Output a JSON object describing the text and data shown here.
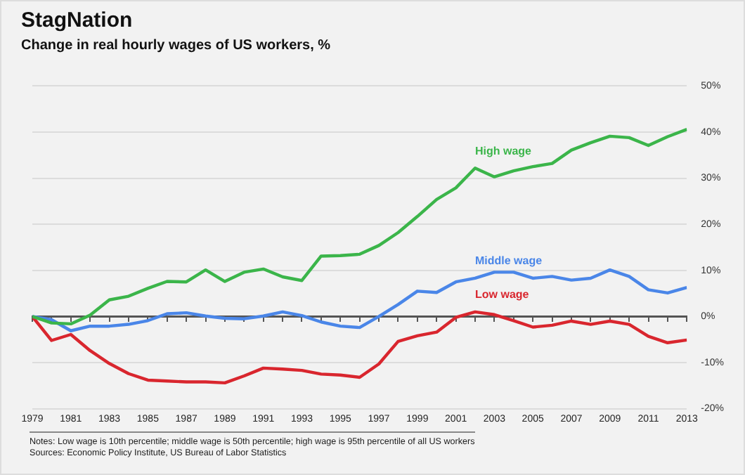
{
  "chart_data": {
    "type": "line",
    "title": "StagNation",
    "subtitle": "Change in real hourly wages of US workers, %",
    "annotations": [
      "Notes: Low wage is 10th percentile; middle wage is 50th percentile; high wage is 95th percentile of all US workers",
      "Sources: Economic Policy Institute, US Bureau of Labor Statistics"
    ],
    "x": [
      1979,
      1980,
      1981,
      1982,
      1983,
      1984,
      1985,
      1986,
      1987,
      1988,
      1989,
      1990,
      1991,
      1992,
      1993,
      1994,
      1995,
      1996,
      1997,
      1998,
      1999,
      2000,
      2001,
      2002,
      2003,
      2004,
      2005,
      2006,
      2007,
      2008,
      2009,
      2010,
      2011,
      2012,
      2013
    ],
    "series": [
      {
        "name": "High wage",
        "color": "#3bb54a",
        "values": [
          0,
          -1.4,
          -1.6,
          0.3,
          3.6,
          4.4,
          6.1,
          7.6,
          7.5,
          10.1,
          7.6,
          9.6,
          10.3,
          8.6,
          7.8,
          13.1,
          13.2,
          13.5,
          15.4,
          18.2,
          21.7,
          25.4,
          27.9,
          32.2,
          30.3,
          31.6,
          32.5,
          33.2,
          36.1,
          37.7,
          39.1,
          38.8,
          37.1,
          39.0,
          40.6
        ]
      },
      {
        "name": "Middle wage",
        "color": "#4a86e8",
        "values": [
          0,
          -0.7,
          -3.1,
          -2.1,
          -2.1,
          -1.7,
          -0.9,
          0.6,
          0.8,
          0.1,
          -0.4,
          -0.5,
          0.1,
          1.0,
          0.2,
          -1.2,
          -2.1,
          -2.4,
          0,
          2.6,
          5.5,
          5.2,
          7.5,
          8.3,
          9.6,
          9.6,
          8.3,
          8.7,
          7.9,
          8.3,
          10.1,
          8.7,
          5.8,
          5.1,
          6.3
        ]
      },
      {
        "name": "Low wage",
        "color": "#d9262e",
        "values": [
          0,
          -5.2,
          -3.9,
          -7.4,
          -10.2,
          -12.4,
          -13.8,
          -14.0,
          -14.2,
          -14.2,
          -14.4,
          -12.9,
          -11.2,
          -11.4,
          -11.7,
          -12.5,
          -12.7,
          -13.2,
          -10.3,
          -5.4,
          -4.2,
          -3.4,
          -0.2,
          1.0,
          0.4,
          -0.9,
          -2.3,
          -1.9,
          -1.0,
          -1.7,
          -1.0,
          -1.7,
          -4.3,
          -5.7,
          -5.1
        ]
      }
    ],
    "xlim": [
      1979,
      2013
    ],
    "xticks": [
      1979,
      {
        "value": 1980,
        "label": null
      },
      1981,
      {
        "value": 1982,
        "label": null
      },
      1983,
      {
        "value": 1984,
        "label": null
      },
      1985,
      {
        "value": 1986,
        "label": null
      },
      1987,
      {
        "value": 1988,
        "label": null
      },
      1989,
      {
        "value": 1990,
        "label": null
      },
      1991,
      {
        "value": 1992,
        "label": null
      },
      1993,
      {
        "value": 1994,
        "label": null
      },
      1995,
      {
        "value": 1996,
        "label": null
      },
      1997,
      {
        "value": 1998,
        "label": null
      },
      1999,
      {
        "value": 2000,
        "label": null
      },
      2001,
      {
        "value": 2002,
        "label": null
      },
      2003,
      {
        "value": 2004,
        "label": null
      },
      2005,
      {
        "value": 2006,
        "label": null
      },
      2007,
      {
        "value": 2008,
        "label": null
      },
      2009,
      {
        "value": 2010,
        "label": null
      },
      2011,
      {
        "value": 2012,
        "label": null
      },
      2013
    ],
    "ylim": [
      -20,
      50
    ],
    "yticks": [
      {
        "value": -20,
        "label": "-20%"
      },
      {
        "value": -10,
        "label": "-10%"
      },
      {
        "value": 0,
        "label": "0%"
      },
      {
        "value": 10,
        "label": "10%"
      },
      {
        "value": 20,
        "label": "20%"
      },
      {
        "value": 30,
        "label": "30%"
      },
      {
        "value": 40,
        "label": "40%"
      },
      {
        "value": 50,
        "label": "50%"
      }
    ],
    "grid": "y",
    "legend": false,
    "marker": "none",
    "line_style": "solid"
  }
}
